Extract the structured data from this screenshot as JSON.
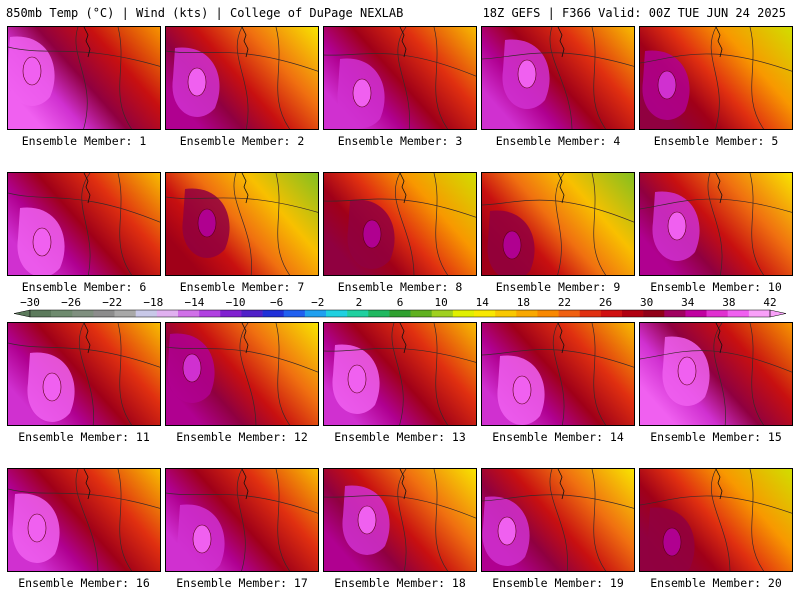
{
  "header": {
    "left": "850mb Temp (°C) | Wind (kts) | College of DuPage NEXLAB",
    "right": "18Z GEFS | F366 Valid: 00Z TUE JUN 24 2025"
  },
  "members": [
    {
      "label": "Ensemble Member: 1",
      "warmth": 0.92
    },
    {
      "label": "Ensemble Member: 2",
      "warmth": 0.78
    },
    {
      "label": "Ensemble Member: 3",
      "warmth": 0.82
    },
    {
      "label": "Ensemble Member: 4",
      "warmth": 0.8
    },
    {
      "label": "Ensemble Member: 5",
      "warmth": 0.7
    },
    {
      "label": "Ensemble Member: 6",
      "warmth": 0.85
    },
    {
      "label": "Ensemble Member: 7",
      "warmth": 0.6
    },
    {
      "label": "Ensemble Member: 8",
      "warmth": 0.66
    },
    {
      "label": "Ensemble Member: 9",
      "warmth": 0.62
    },
    {
      "label": "Ensemble Member: 10",
      "warmth": 0.78
    },
    {
      "label": "Ensemble Member: 11",
      "warmth": 0.86
    },
    {
      "label": "Ensemble Member: 12",
      "warmth": 0.74
    },
    {
      "label": "Ensemble Member: 13",
      "warmth": 0.86
    },
    {
      "label": "Ensemble Member: 14",
      "warmth": 0.84
    },
    {
      "label": "Ensemble Member: 15",
      "warmth": 0.88
    },
    {
      "label": "Ensemble Member: 16",
      "warmth": 0.84
    },
    {
      "label": "Ensemble Member: 17",
      "warmth": 0.8
    },
    {
      "label": "Ensemble Member: 18",
      "warmth": 0.78
    },
    {
      "label": "Ensemble Member: 19",
      "warmth": 0.76
    },
    {
      "label": "Ensemble Member: 20",
      "warmth": 0.64
    }
  ],
  "colorbar": {
    "tick_labels": [
      "−30",
      "−26",
      "−22",
      "−18",
      "−14",
      "−10",
      "−6",
      "−2",
      "2",
      "6",
      "10",
      "14",
      "18",
      "22",
      "26",
      "30",
      "34",
      "38",
      "42"
    ],
    "colors": [
      "#5c7a5c",
      "#6e8a6e",
      "#7f8f7f",
      "#8c8c8c",
      "#a8a8a8",
      "#c8c8e8",
      "#e0b0f0",
      "#d070e8",
      "#b040e0",
      "#8020d0",
      "#5020c8",
      "#2030d8",
      "#2060f0",
      "#20a0f0",
      "#20d0e0",
      "#20d0a0",
      "#20b860",
      "#30a030",
      "#60b020",
      "#a0d020",
      "#e0f000",
      "#f8e800",
      "#f8c800",
      "#f8a800",
      "#f88800",
      "#f06010",
      "#e03010",
      "#d01010",
      "#b00010",
      "#900018",
      "#a00060",
      "#c000a0",
      "#e030d0",
      "#f060f0",
      "#f8a0f8"
    ]
  }
}
